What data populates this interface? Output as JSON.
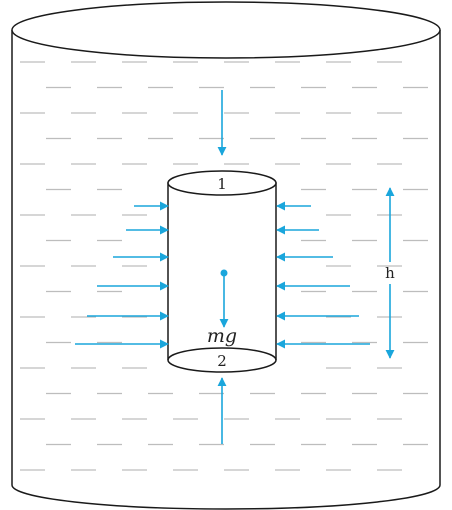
{
  "labels": {
    "top_face": "1",
    "bottom_face": "2",
    "height": "h",
    "weight": "mg"
  },
  "colors": {
    "outline": "#1a1a1a",
    "arrow": "#1aa6dc",
    "liquid_dash": "#bdbdbd",
    "background": "#ffffff"
  },
  "icons": {
    "pressure_arrow": "arrow-right",
    "height_marker": "double-arrow-vertical",
    "center_of_mass": "dot"
  }
}
